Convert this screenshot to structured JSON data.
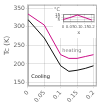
{
  "chart_data": [
    {
      "type": "line",
      "x": [
        0,
        0.05,
        0.1,
        0.125,
        0.15,
        0.175,
        0.2
      ],
      "series": [
        {
          "color": "#111111",
          "values": [
            320,
            270,
            195,
            180,
            183,
            188,
            195
          ]
        },
        {
          "color": "#cc1188",
          "values": [
            335,
            305,
            225,
            215,
            215,
            220,
            225
          ]
        }
      ],
      "ylabel": "Tc (K)",
      "xlim": [
        0,
        0.21
      ],
      "ylim": [
        140,
        360
      ],
      "xticks": [
        0,
        0.05,
        0.1,
        0.15,
        0.2
      ],
      "yticks": [
        150,
        200,
        250,
        300,
        350
      ],
      "grid": true,
      "annotations": [
        {
          "text": "Cooling",
          "x": 0.01,
          "y": 158,
          "color": "#111111"
        },
        {
          "text": "heating",
          "x": 0.105,
          "y": 228,
          "color": "gray"
        }
      ]
    },
    {
      "type": "line",
      "title": "°C",
      "xlabel": "x",
      "x": [
        0,
        0.05,
        0.1,
        0.15,
        0.2
      ],
      "series": [
        {
          "color": "#cc1188",
          "values": [
            5,
            9,
            14,
            9,
            4
          ]
        }
      ],
      "xlim": [
        0,
        0.22
      ],
      "ylim": [
        0,
        16
      ],
      "xticks": [
        0,
        0.05,
        0.1,
        0.15,
        0.2
      ],
      "yticks": [
        5,
        10,
        15
      ],
      "grid": true
    }
  ]
}
